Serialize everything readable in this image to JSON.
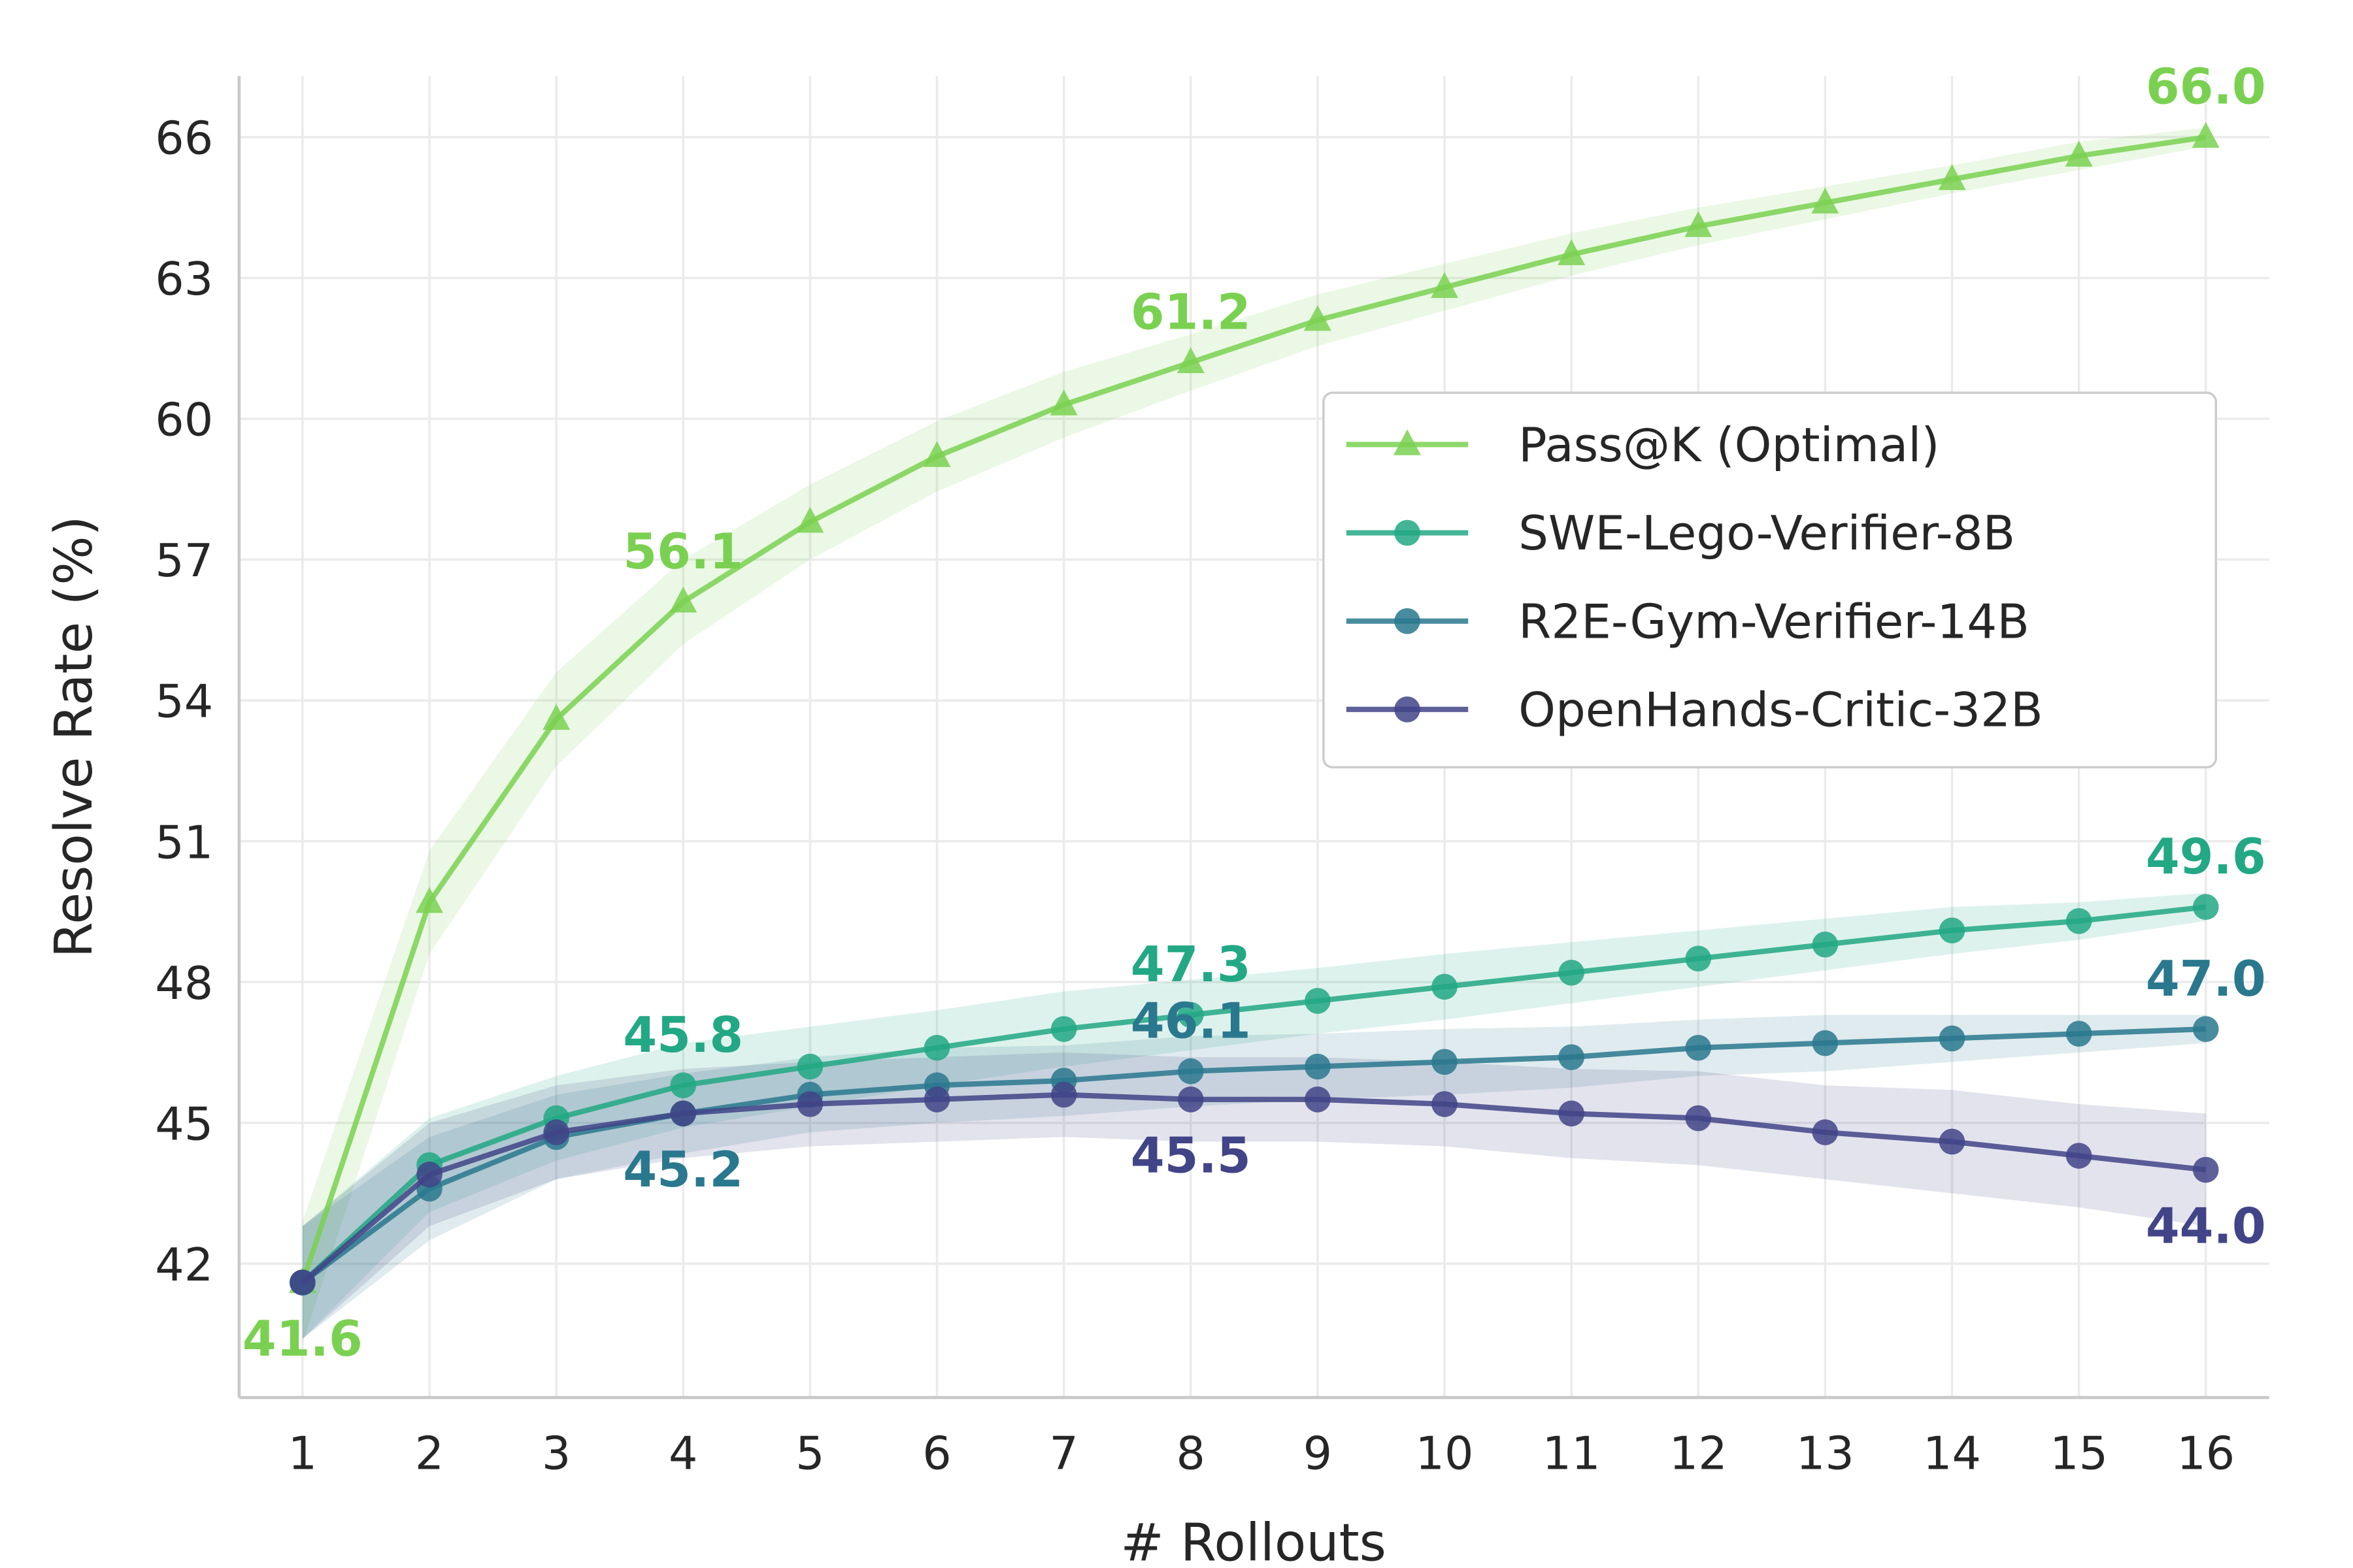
{
  "chart_data": {
    "type": "line",
    "title": "",
    "xlabel": "# Rollouts",
    "ylabel": "Resolve Rate (%)",
    "x": [
      1,
      2,
      3,
      4,
      5,
      6,
      7,
      8,
      9,
      10,
      11,
      12,
      13,
      14,
      15,
      16
    ],
    "xticks": [
      "1",
      "2",
      "3",
      "4",
      "5",
      "6",
      "7",
      "8",
      "9",
      "10",
      "11",
      "12",
      "13",
      "14",
      "15",
      "16"
    ],
    "yticks": [
      42,
      45,
      48,
      51,
      54,
      57,
      60,
      63,
      66
    ],
    "ylim": [
      39.15,
      67.3
    ],
    "xlim": [
      0.5,
      16.5
    ],
    "grid": true,
    "legend_position": "center-right",
    "series": [
      {
        "name": "Pass@K (Optimal)",
        "color": "#7ad151",
        "marker": "triangle",
        "values": [
          41.6,
          49.7,
          53.6,
          56.1,
          57.8,
          59.2,
          60.3,
          61.2,
          62.1,
          62.8,
          63.5,
          64.1,
          64.6,
          65.1,
          65.6,
          66.0
        ],
        "ci": [
          1.3,
          1.1,
          1.0,
          0.9,
          0.8,
          0.75,
          0.7,
          0.6,
          0.55,
          0.5,
          0.45,
          0.4,
          0.35,
          0.3,
          0.3,
          0.2
        ]
      },
      {
        "name": "SWE-Lego-Verifier-8B",
        "color": "#22a884",
        "marker": "circle",
        "values": [
          41.6,
          44.1,
          45.1,
          45.8,
          46.2,
          46.6,
          47.0,
          47.3,
          47.6,
          47.9,
          48.2,
          48.5,
          48.8,
          49.1,
          49.3,
          49.6
        ],
        "ci": [
          1.2,
          1.0,
          0.9,
          0.9,
          0.85,
          0.8,
          0.8,
          0.75,
          0.7,
          0.7,
          0.65,
          0.6,
          0.55,
          0.5,
          0.4,
          0.3
        ]
      },
      {
        "name": "R2E-Gym-Verifier-14B",
        "color": "#2a788e",
        "marker": "circle",
        "values": [
          41.6,
          43.6,
          44.7,
          45.2,
          45.6,
          45.8,
          45.9,
          46.1,
          46.2,
          46.3,
          46.4,
          46.6,
          46.7,
          46.8,
          46.9,
          47.0
        ],
        "ci": [
          1.2,
          1.1,
          0.9,
          0.85,
          0.8,
          0.8,
          0.75,
          0.75,
          0.7,
          0.7,
          0.65,
          0.6,
          0.6,
          0.5,
          0.4,
          0.3
        ]
      },
      {
        "name": "OpenHands-Critic-32B",
        "color": "#414487",
        "marker": "circle",
        "values": [
          41.6,
          43.9,
          44.8,
          45.2,
          45.4,
          45.5,
          45.6,
          45.5,
          45.5,
          45.4,
          45.2,
          45.1,
          44.8,
          44.6,
          44.3,
          44.0
        ],
        "ci": [
          1.2,
          1.1,
          1.0,
          0.95,
          0.9,
          0.9,
          0.9,
          0.9,
          0.9,
          0.9,
          0.95,
          1.0,
          1.0,
          1.1,
          1.1,
          1.2
        ]
      }
    ],
    "annotations": [
      {
        "series": 0,
        "x": 1,
        "text": "41.6",
        "position": "below"
      },
      {
        "series": 0,
        "x": 4,
        "text": "56.1",
        "position": "above"
      },
      {
        "series": 0,
        "x": 8,
        "text": "61.2",
        "position": "above"
      },
      {
        "series": 0,
        "x": 16,
        "text": "66.0",
        "position": "above"
      },
      {
        "series": 1,
        "x": 4,
        "text": "45.8",
        "position": "above"
      },
      {
        "series": 1,
        "x": 8,
        "text": "47.3",
        "position": "above"
      },
      {
        "series": 1,
        "x": 16,
        "text": "49.6",
        "position": "above"
      },
      {
        "series": 2,
        "x": 4,
        "text": "45.2",
        "position": "below"
      },
      {
        "series": 2,
        "x": 8,
        "text": "46.1",
        "position": "above"
      },
      {
        "series": 2,
        "x": 16,
        "text": "47.0",
        "position": "above"
      },
      {
        "series": 3,
        "x": 8,
        "text": "45.5",
        "position": "below"
      },
      {
        "series": 3,
        "x": 16,
        "text": "44.0",
        "position": "below"
      }
    ]
  }
}
